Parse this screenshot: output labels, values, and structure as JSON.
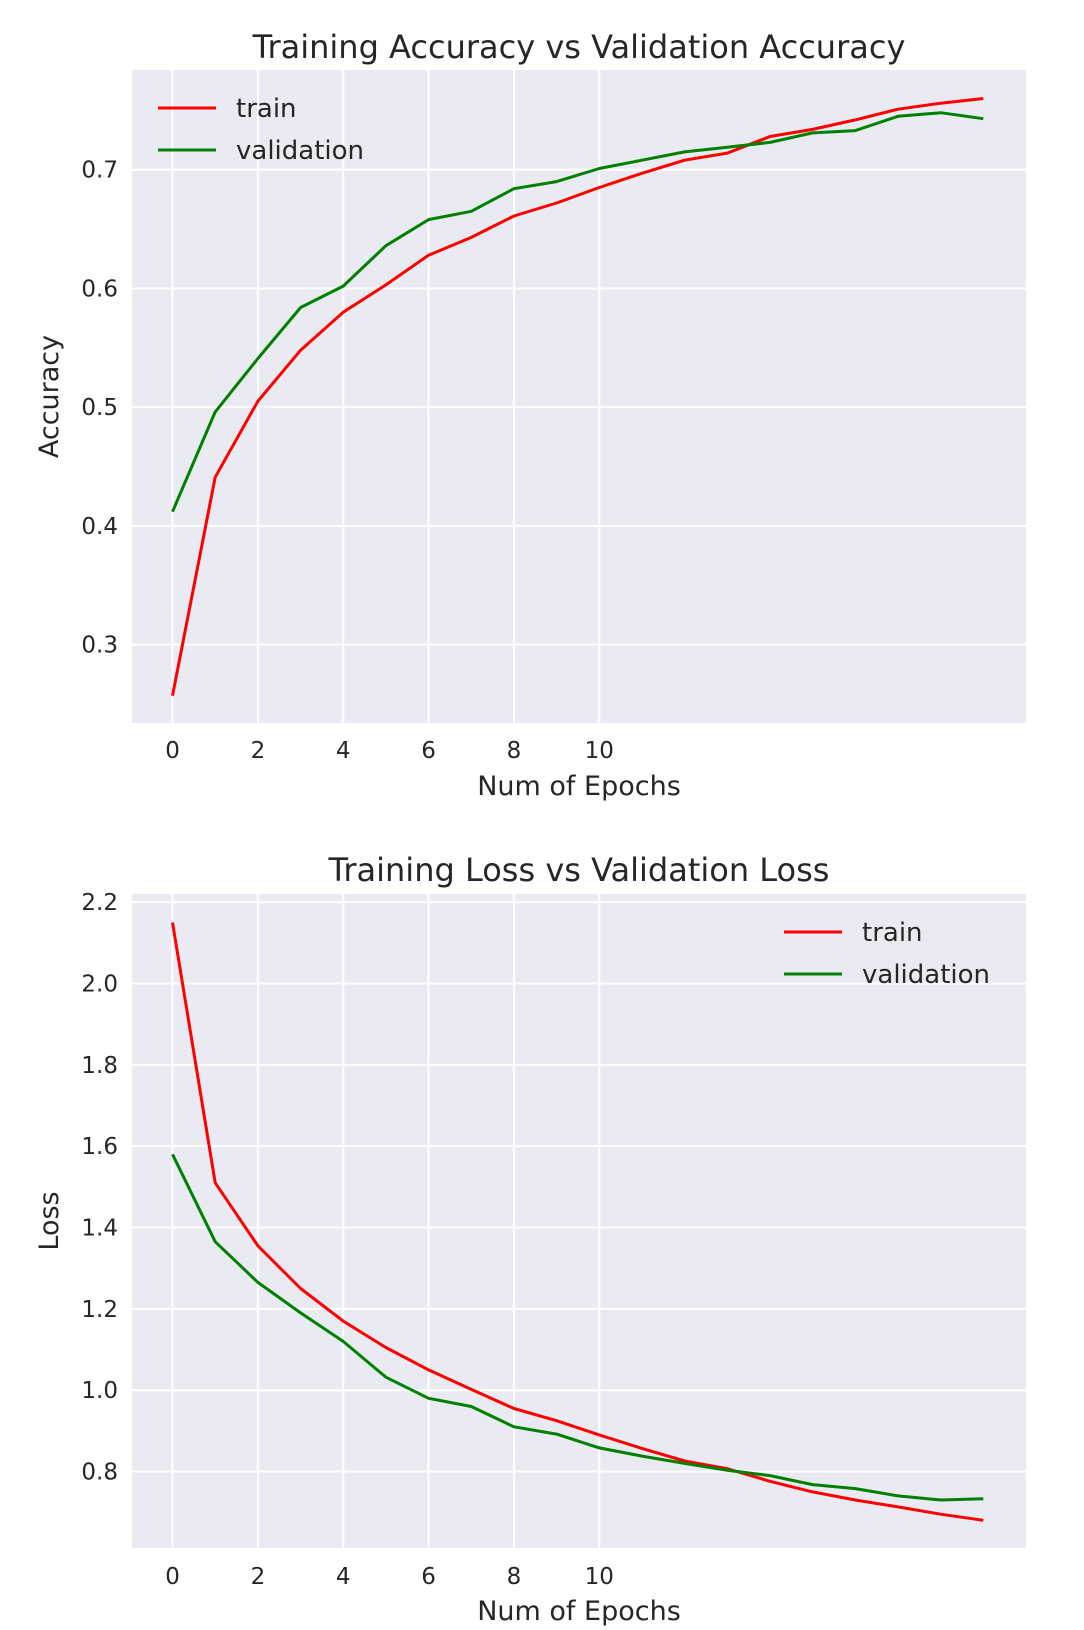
{
  "chart_data": [
    {
      "type": "line",
      "title": "Training Accuracy vs Validation Accuracy",
      "xlabel": "Num of Epochs",
      "ylabel": "Accuracy",
      "x": [
        0,
        1,
        2,
        3,
        4,
        5,
        6,
        7,
        8,
        9,
        10,
        11,
        12,
        13,
        14,
        15,
        16,
        17,
        18,
        19
      ],
      "xticks": [
        0,
        2,
        4,
        6,
        8,
        10
      ],
      "xtick_labels": [
        "0",
        "2",
        "4",
        "6",
        "8",
        "10"
      ],
      "xlim": [
        -0.95,
        20.0
      ],
      "yticks": [
        0.3,
        0.4,
        0.5,
        0.6,
        0.7
      ],
      "ytick_labels": [
        "0.3",
        "0.4",
        "0.5",
        "0.6",
        "0.7"
      ],
      "ylim": [
        0.234,
        0.784
      ],
      "grid": true,
      "legend": "upper-left",
      "series": [
        {
          "name": "train",
          "color": "#ff0000",
          "values": [
            0.257,
            0.441,
            0.505,
            0.548,
            0.58,
            0.603,
            0.628,
            0.643,
            0.661,
            0.672,
            0.685,
            0.697,
            0.708,
            0.714,
            0.728,
            0.734,
            0.742,
            0.751,
            0.756,
            0.76
          ]
        },
        {
          "name": "validation",
          "color": "#008000",
          "values": [
            0.412,
            0.496,
            0.541,
            0.584,
            0.602,
            0.636,
            0.658,
            0.665,
            0.684,
            0.69,
            0.701,
            0.708,
            0.715,
            0.719,
            0.723,
            0.731,
            0.733,
            0.745,
            0.748,
            0.743
          ]
        }
      ]
    },
    {
      "type": "line",
      "title": "Training Loss vs Validation Loss",
      "xlabel": "Num of Epochs",
      "ylabel": "Loss",
      "x": [
        0,
        1,
        2,
        3,
        4,
        5,
        6,
        7,
        8,
        9,
        10,
        11,
        12,
        13,
        14,
        15,
        16,
        17,
        18,
        19
      ],
      "xticks": [
        0,
        2,
        4,
        6,
        8,
        10
      ],
      "xtick_labels": [
        "0",
        "2",
        "4",
        "6",
        "8",
        "10"
      ],
      "xlim": [
        -0.95,
        20.0
      ],
      "yticks": [
        0.8,
        1.0,
        1.2,
        1.4,
        1.6,
        1.8,
        2.0,
        2.2
      ],
      "ytick_labels": [
        "0.8",
        "1.0",
        "1.2",
        "1.4",
        "1.6",
        "1.8",
        "2.0",
        "2.2"
      ],
      "ylim": [
        0.612,
        2.22
      ],
      "grid": true,
      "legend": "upper-right",
      "series": [
        {
          "name": "train",
          "color": "#ff0000",
          "values": [
            2.15,
            1.51,
            1.355,
            1.25,
            1.17,
            1.105,
            1.05,
            1.002,
            0.955,
            0.925,
            0.89,
            0.857,
            0.826,
            0.807,
            0.776,
            0.75,
            0.73,
            0.713,
            0.695,
            0.68
          ]
        },
        {
          "name": "validation",
          "color": "#008000",
          "values": [
            1.58,
            1.365,
            1.265,
            1.19,
            1.12,
            1.032,
            0.98,
            0.96,
            0.91,
            0.892,
            0.858,
            0.838,
            0.82,
            0.803,
            0.79,
            0.768,
            0.758,
            0.74,
            0.73,
            0.733
          ]
        }
      ]
    }
  ]
}
